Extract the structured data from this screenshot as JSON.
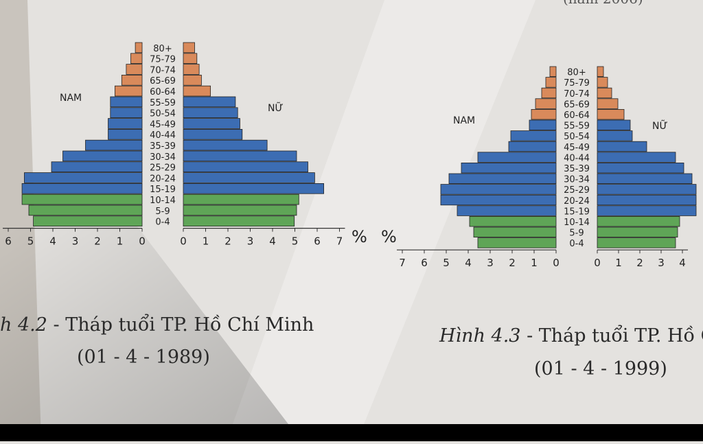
{
  "chart_data": [
    {
      "type": "bar",
      "orientation": "pyramid",
      "left_label": "NAM",
      "right_label": "NỮ",
      "age_groups": [
        "80+",
        "75-79",
        "70-74",
        "65-69",
        "60-64",
        "55-59",
        "50-54",
        "45-49",
        "40-44",
        "35-39",
        "30-34",
        "25-29",
        "20-24",
        "15-19",
        "10-14",
        "5-9",
        "0-4"
      ],
      "series": [
        {
          "name": "NAM",
          "values": [
            0.3,
            0.5,
            0.7,
            0.9,
            1.2,
            1.4,
            1.4,
            1.5,
            1.5,
            2.5,
            3.5,
            4.0,
            5.2,
            5.3,
            5.3,
            5.0,
            4.8
          ]
        },
        {
          "name": "NỮ",
          "values": [
            0.5,
            0.6,
            0.7,
            0.8,
            1.2,
            2.3,
            2.4,
            2.5,
            2.6,
            3.7,
            5.0,
            5.5,
            5.8,
            6.2,
            5.1,
            5.0,
            4.9
          ]
        }
      ],
      "group_colors": {
        "0-14": "#5fa557",
        "15-59": "#3c6db3",
        "60+": "#d98a5b"
      },
      "left_ticks": [
        "6",
        "5",
        "4",
        "3",
        "2",
        "1",
        "0"
      ],
      "right_ticks": [
        "0",
        "1",
        "2",
        "3",
        "4",
        "5",
        "6",
        "7"
      ],
      "unit": "%",
      "caption_prefix": "h 4.2",
      "caption_text": "Tháp tuổi TP. Hồ Chí Minh",
      "caption_date": "(01 - 4 - 1989)"
    },
    {
      "type": "bar",
      "orientation": "pyramid",
      "left_label": "NAM",
      "right_label": "NỮ",
      "age_groups": [
        "80+",
        "75-79",
        "70-74",
        "65-69",
        "60-64",
        "55-59",
        "50-54",
        "45-49",
        "40-44",
        "35-39",
        "30-34",
        "25-29",
        "20-24",
        "15-19",
        "10-14",
        "5-9",
        "0-4"
      ],
      "series": [
        {
          "name": "NAM",
          "values": [
            0.3,
            0.5,
            0.7,
            1.0,
            1.2,
            1.3,
            2.2,
            2.3,
            3.8,
            4.6,
            5.2,
            5.6,
            5.6,
            4.8,
            4.2,
            4.0,
            3.8
          ]
        },
        {
          "name": "NỮ",
          "values": [
            0.3,
            0.5,
            0.7,
            1.0,
            1.3,
            1.6,
            1.7,
            2.4,
            3.8,
            4.2,
            4.6,
            4.8,
            4.8,
            4.8,
            4.0,
            3.9,
            3.8
          ]
        }
      ],
      "group_colors": {
        "0-14": "#5fa557",
        "15-59": "#3c6db3",
        "60+": "#d98a5b"
      },
      "left_ticks": [
        "7",
        "6",
        "5",
        "4",
        "3",
        "2",
        "1",
        "0"
      ],
      "right_ticks": [
        "0",
        "1",
        "2",
        "3",
        "4"
      ],
      "unit": "%",
      "caption_prefix": "Hình 4.3",
      "caption_text": "Tháp tuổi TP. Hồ Cl",
      "caption_date": "(01 - 4 - 1999)"
    }
  ],
  "top_right_fragment": "(năm 2006)"
}
